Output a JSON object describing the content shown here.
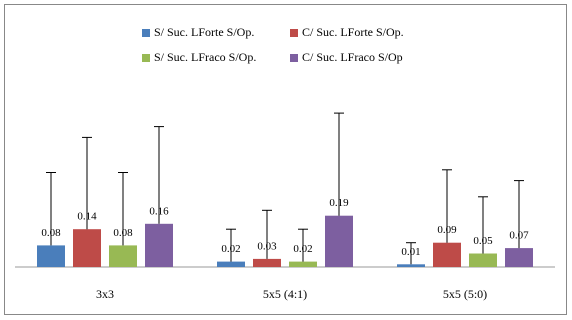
{
  "chart_data": {
    "type": "bar",
    "categories": [
      "3x3",
      "5x5 (4:1)",
      "5x5 (5:0)"
    ],
    "series": [
      {
        "name": "S/ Suc. LForte S/Op.",
        "color": "#4a7ebb",
        "values": [
          0.08,
          0.02,
          0.01
        ],
        "errors": [
          0.27,
          0.12,
          0.08
        ]
      },
      {
        "name": "C/ Suc. LForte S/Op.",
        "color": "#be4b48",
        "values": [
          0.14,
          0.03,
          0.09
        ],
        "errors": [
          0.34,
          0.18,
          0.27
        ]
      },
      {
        "name": "S/ Suc. LFraco S/Op.",
        "color": "#98b954",
        "values": [
          0.08,
          0.02,
          0.05
        ],
        "errors": [
          0.27,
          0.12,
          0.21
        ]
      },
      {
        "name": "C/ Suc. LFraco S/Op",
        "color": "#7d5fa0",
        "values": [
          0.16,
          0.19,
          0.07
        ],
        "errors": [
          0.36,
          0.38,
          0.25
        ]
      }
    ],
    "ylim": [
      0,
      0.6
    ]
  }
}
